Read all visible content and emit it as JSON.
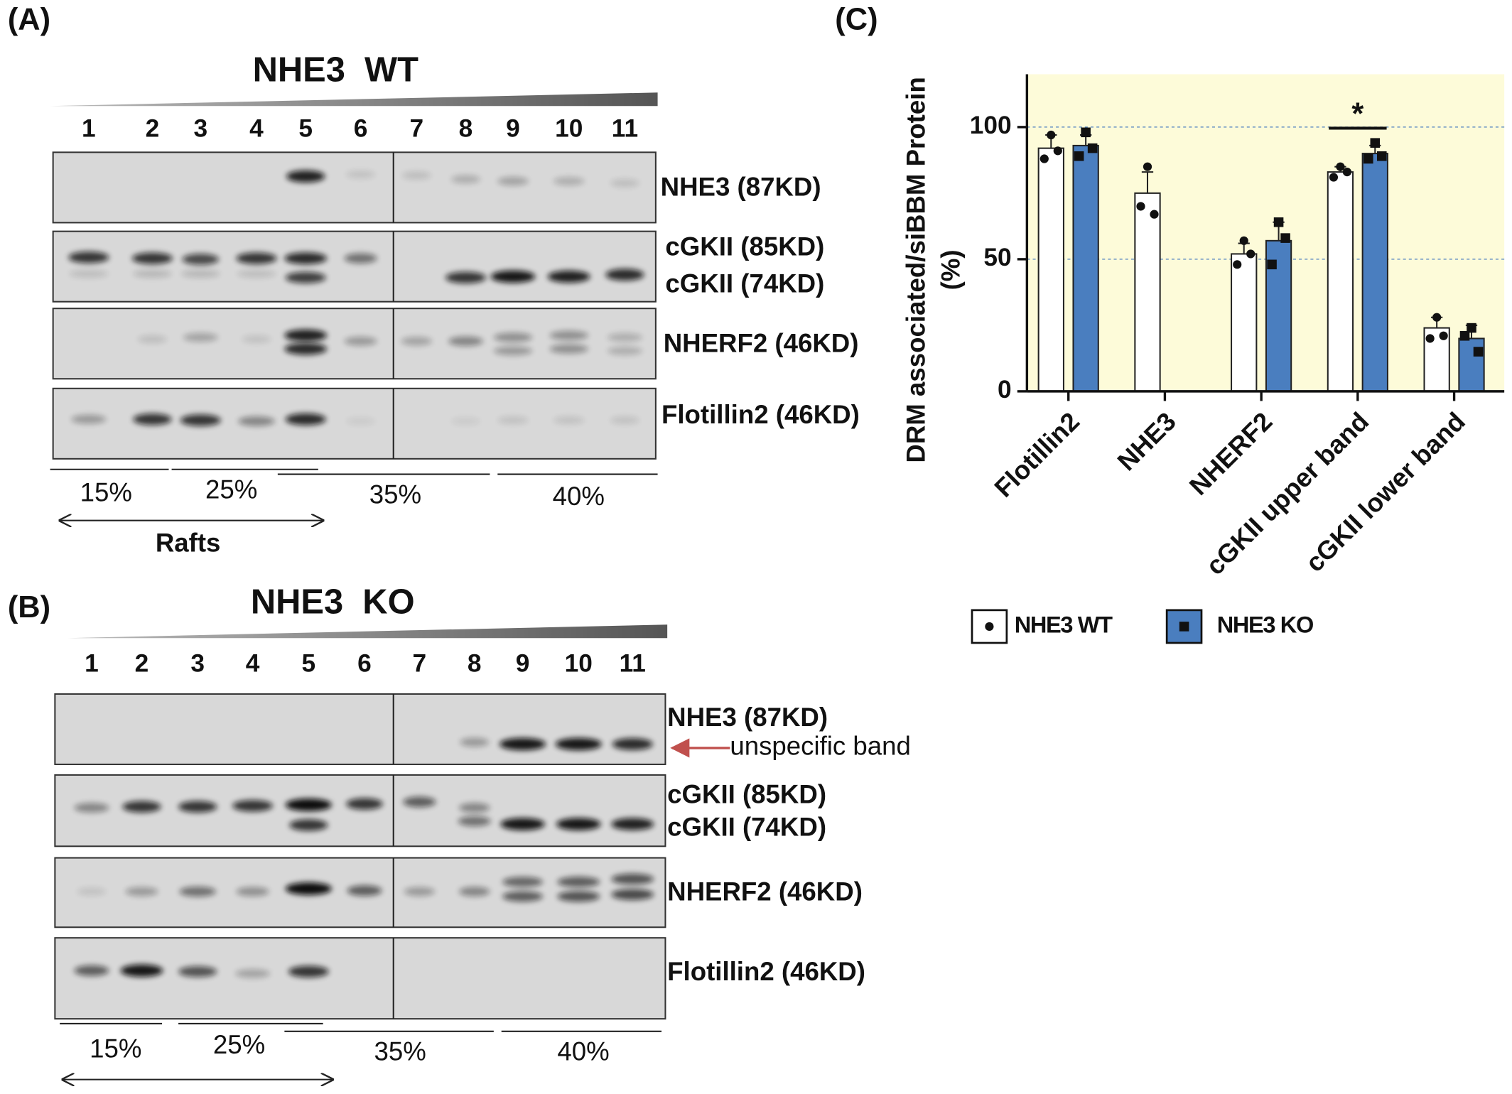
{
  "panels": [
    {
      "label": "(A)",
      "title": "NHE3  WT",
      "lanes": [
        "1",
        "2",
        "3",
        "4",
        "5",
        "6",
        "7",
        "8",
        "9",
        "10",
        "11"
      ],
      "bands": [
        "NHE3 (87KD)",
        "cGKII (85KD)",
        "cGKII (74KD)",
        "NHERF2 (46KD)",
        "Flotillin2 (46KD)"
      ],
      "gradient": [
        "15%",
        "25%",
        "35%",
        "40%"
      ],
      "rafts": "Rafts"
    },
    {
      "label": "(B)",
      "title": "NHE3  KO",
      "lanes": [
        "1",
        "2",
        "3",
        "4",
        "5",
        "6",
        "7",
        "8",
        "9",
        "10",
        "11"
      ],
      "bands": [
        "NHE3 (87KD)",
        "cGKII (85KD)",
        "cGKII (74KD)",
        "NHERF2 (46KD)",
        "Flotillin2 (46KD)"
      ],
      "note": "unspecific band",
      "gradient": [
        "15%",
        "25%",
        "35%",
        "40%"
      ]
    }
  ],
  "chart_data": {
    "type": "bar",
    "label": "(C)",
    "ylabel": [
      "DRM associated/siBBM Protein",
      "(%)"
    ],
    "categories": [
      "Flotillin2",
      "NHE3",
      "NHERF2",
      "cGKII upper band",
      "cGKII lower band"
    ],
    "series": [
      {
        "name": "NHE3 WT",
        "color": "#ffffff",
        "values": [
          92,
          75,
          52,
          83,
          24
        ],
        "errors": [
          5,
          8,
          4,
          2,
          4
        ],
        "points": [
          [
            97,
            88,
            91
          ],
          [
            85,
            70,
            67
          ],
          [
            57,
            48,
            52
          ],
          [
            85,
            81,
            83
          ],
          [
            28,
            20,
            21
          ]
        ]
      },
      {
        "name": "NHE3 KO",
        "color": "#4a7ebf",
        "values": [
          93,
          null,
          57,
          90,
          20
        ],
        "errors": [
          4,
          null,
          7,
          3,
          5
        ],
        "points": [
          [
            98,
            89,
            92
          ],
          null,
          [
            64,
            48,
            58
          ],
          [
            94,
            88,
            89
          ],
          [
            24,
            21,
            15
          ]
        ]
      }
    ],
    "annotation": "*",
    "ylim": [
      0,
      120
    ],
    "yticks": [
      0,
      50,
      100
    ],
    "grid": true,
    "background": "#fdfbd9"
  }
}
